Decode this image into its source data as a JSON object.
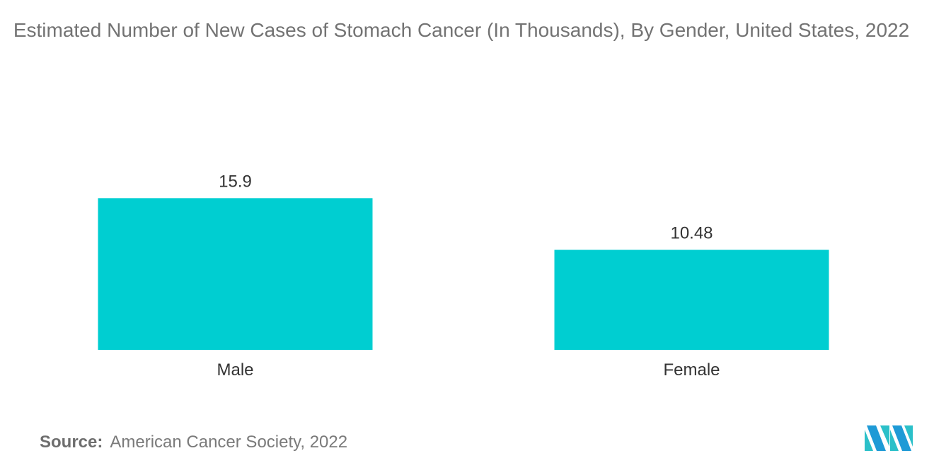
{
  "chart_data": {
    "type": "bar",
    "title": "Estimated Number of New Cases of Stomach Cancer (In Thousands), By Gender, United States, 2022",
    "categories": [
      "Male",
      "Female"
    ],
    "values": [
      15.9,
      10.48
    ],
    "value_labels": [
      "15.9",
      "10.48"
    ],
    "ylim": [
      0,
      20
    ],
    "grid": false,
    "legend": "none",
    "bar_color": "#00ced1"
  },
  "source": {
    "label": "Source:",
    "text": "American Cancer Society, 2022"
  },
  "logo": {
    "icon": "mordor-intelligence-logo-icon",
    "colors": [
      "#1e9ad6",
      "#2bc0c9"
    ]
  }
}
